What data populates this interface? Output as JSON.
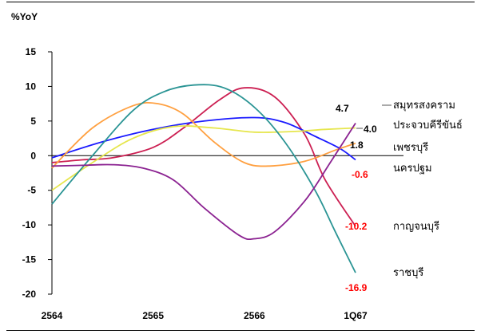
{
  "chart_data": {
    "type": "line",
    "ylabel": "%YoY",
    "ylim": [
      -20,
      15
    ],
    "yticks": [
      15,
      10,
      5,
      0,
      -5,
      -10,
      -15,
      -20
    ],
    "categories": [
      "2564",
      "2565",
      "2566",
      "1Q67"
    ],
    "x": [
      0,
      1,
      2,
      3
    ],
    "grid": false,
    "legend": "right",
    "series": [
      {
        "name": "สมุทรสงคราม",
        "color": "#cc1f52",
        "values": [
          [
            0.0,
            -1.0
          ],
          [
            0.3,
            -0.6
          ],
          [
            0.6,
            -0.3
          ],
          [
            1.0,
            1.2
          ],
          [
            1.3,
            4.0
          ],
          [
            1.65,
            8.0
          ],
          [
            1.9,
            9.8
          ],
          [
            2.2,
            8.5
          ],
          [
            2.5,
            3.0
          ],
          [
            2.7,
            -3.5
          ],
          [
            3.0,
            -10.2
          ]
        ],
        "end_value": "-10.2",
        "end_label_color": "#ff0000"
      },
      {
        "name": "ประจวบคีรีขันธ์",
        "color": "#1a1aff",
        "values": [
          [
            0.0,
            -0.3
          ],
          [
            0.5,
            2.0
          ],
          [
            1.0,
            3.8
          ],
          [
            1.5,
            5.0
          ],
          [
            2.0,
            5.5
          ],
          [
            2.3,
            4.8
          ],
          [
            2.6,
            2.8
          ],
          [
            2.85,
            1.0
          ],
          [
            3.0,
            -0.6
          ]
        ],
        "end_value": "-0.6",
        "end_label_color": "#ff0000"
      },
      {
        "name": "เพชรบุรี",
        "color": "#ffa040",
        "values": [
          [
            0.0,
            -1.8
          ],
          [
            0.4,
            4.0
          ],
          [
            0.8,
            7.2
          ],
          [
            1.05,
            7.5
          ],
          [
            1.3,
            6.0
          ],
          [
            1.6,
            2.0
          ],
          [
            1.9,
            -1.0
          ],
          [
            2.15,
            -1.5
          ],
          [
            2.5,
            -0.8
          ],
          [
            2.8,
            0.8
          ],
          [
            3.0,
            1.8
          ]
        ],
        "end_value": "1.8",
        "end_label_color": "#000000"
      },
      {
        "name": "นครปฐม",
        "color": "#e6e64d",
        "values": [
          [
            0.0,
            -5.0
          ],
          [
            0.4,
            -1.0
          ],
          [
            0.8,
            2.5
          ],
          [
            1.2,
            4.2
          ],
          [
            1.6,
            4.0
          ],
          [
            2.0,
            3.4
          ],
          [
            2.4,
            3.5
          ],
          [
            2.7,
            3.8
          ],
          [
            3.0,
            4.0
          ]
        ],
        "end_value": "4.0",
        "end_label_color": "#000000"
      },
      {
        "name": "กาญจนบุรี",
        "color": "#2a9494",
        "values": [
          [
            0.0,
            -7.0
          ],
          [
            0.4,
            0.0
          ],
          [
            0.8,
            6.5
          ],
          [
            1.1,
            9.2
          ],
          [
            1.4,
            10.2
          ],
          [
            1.7,
            9.8
          ],
          [
            2.0,
            7.0
          ],
          [
            2.3,
            2.0
          ],
          [
            2.6,
            -5.0
          ],
          [
            2.8,
            -11.0
          ],
          [
            3.0,
            -16.9
          ]
        ],
        "end_value": "-16.9",
        "end_label_color": "#ff0000"
      },
      {
        "name": "ราชบุรี",
        "color": "#8b2291",
        "values": [
          [
            0.0,
            -1.5
          ],
          [
            0.3,
            -1.4
          ],
          [
            0.6,
            -1.3
          ],
          [
            0.9,
            -1.8
          ],
          [
            1.2,
            -3.5
          ],
          [
            1.5,
            -7.5
          ],
          [
            1.85,
            -11.5
          ],
          [
            2.0,
            -12.0
          ],
          [
            2.2,
            -11.0
          ],
          [
            2.5,
            -6.5
          ],
          [
            2.75,
            -1.0
          ],
          [
            3.0,
            4.7
          ]
        ],
        "end_value": "4.7",
        "end_label_color": "#000000"
      }
    ]
  }
}
